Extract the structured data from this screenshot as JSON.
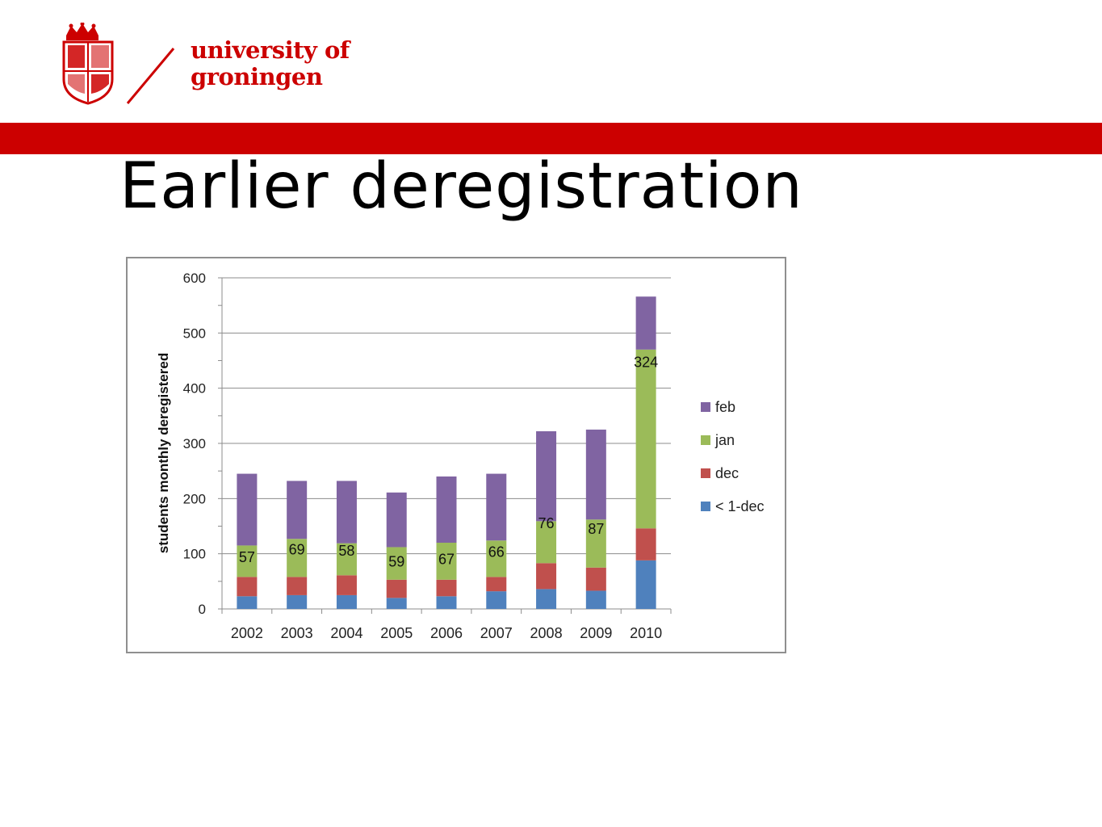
{
  "header": {
    "logo_line1": "university of",
    "logo_line2": "groningen"
  },
  "slide": {
    "title": "Earlier deregistration"
  },
  "colors": {
    "brand_red": "#cc0000",
    "feb": "#8064a2",
    "jan": "#9bbb59",
    "dec": "#c0504d",
    "lt_1_dec": "#4f81bd"
  },
  "chart_data": {
    "type": "bar",
    "stacked": true,
    "categories": [
      "2002",
      "2003",
      "2004",
      "2005",
      "2006",
      "2007",
      "2008",
      "2009",
      "2010"
    ],
    "series": [
      {
        "name": "< 1-dec",
        "color": "#4f81bd",
        "values": [
          23,
          25,
          25,
          20,
          23,
          32,
          36,
          33,
          88
        ]
      },
      {
        "name": "dec",
        "color": "#c0504d",
        "values": [
          35,
          33,
          36,
          33,
          30,
          26,
          47,
          42,
          58
        ]
      },
      {
        "name": "jan",
        "color": "#9bbb59",
        "values": [
          57,
          69,
          58,
          59,
          67,
          66,
          76,
          87,
          324
        ]
      },
      {
        "name": "feb",
        "color": "#8064a2",
        "values": [
          130,
          105,
          113,
          99,
          120,
          121,
          163,
          163,
          96
        ]
      }
    ],
    "data_labels": [
      "57",
      "69",
      "58",
      "59",
      "67",
      "66",
      "76",
      "87",
      "324"
    ],
    "ylabel": "students monthly deregistered",
    "xlabel": "",
    "ylim": [
      0,
      600
    ],
    "yticks": [
      "0",
      "100",
      "200",
      "300",
      "400",
      "500",
      "600"
    ],
    "grid": true,
    "legend_position": "right",
    "legend": [
      "feb",
      "jan",
      "dec",
      "< 1-dec"
    ]
  }
}
